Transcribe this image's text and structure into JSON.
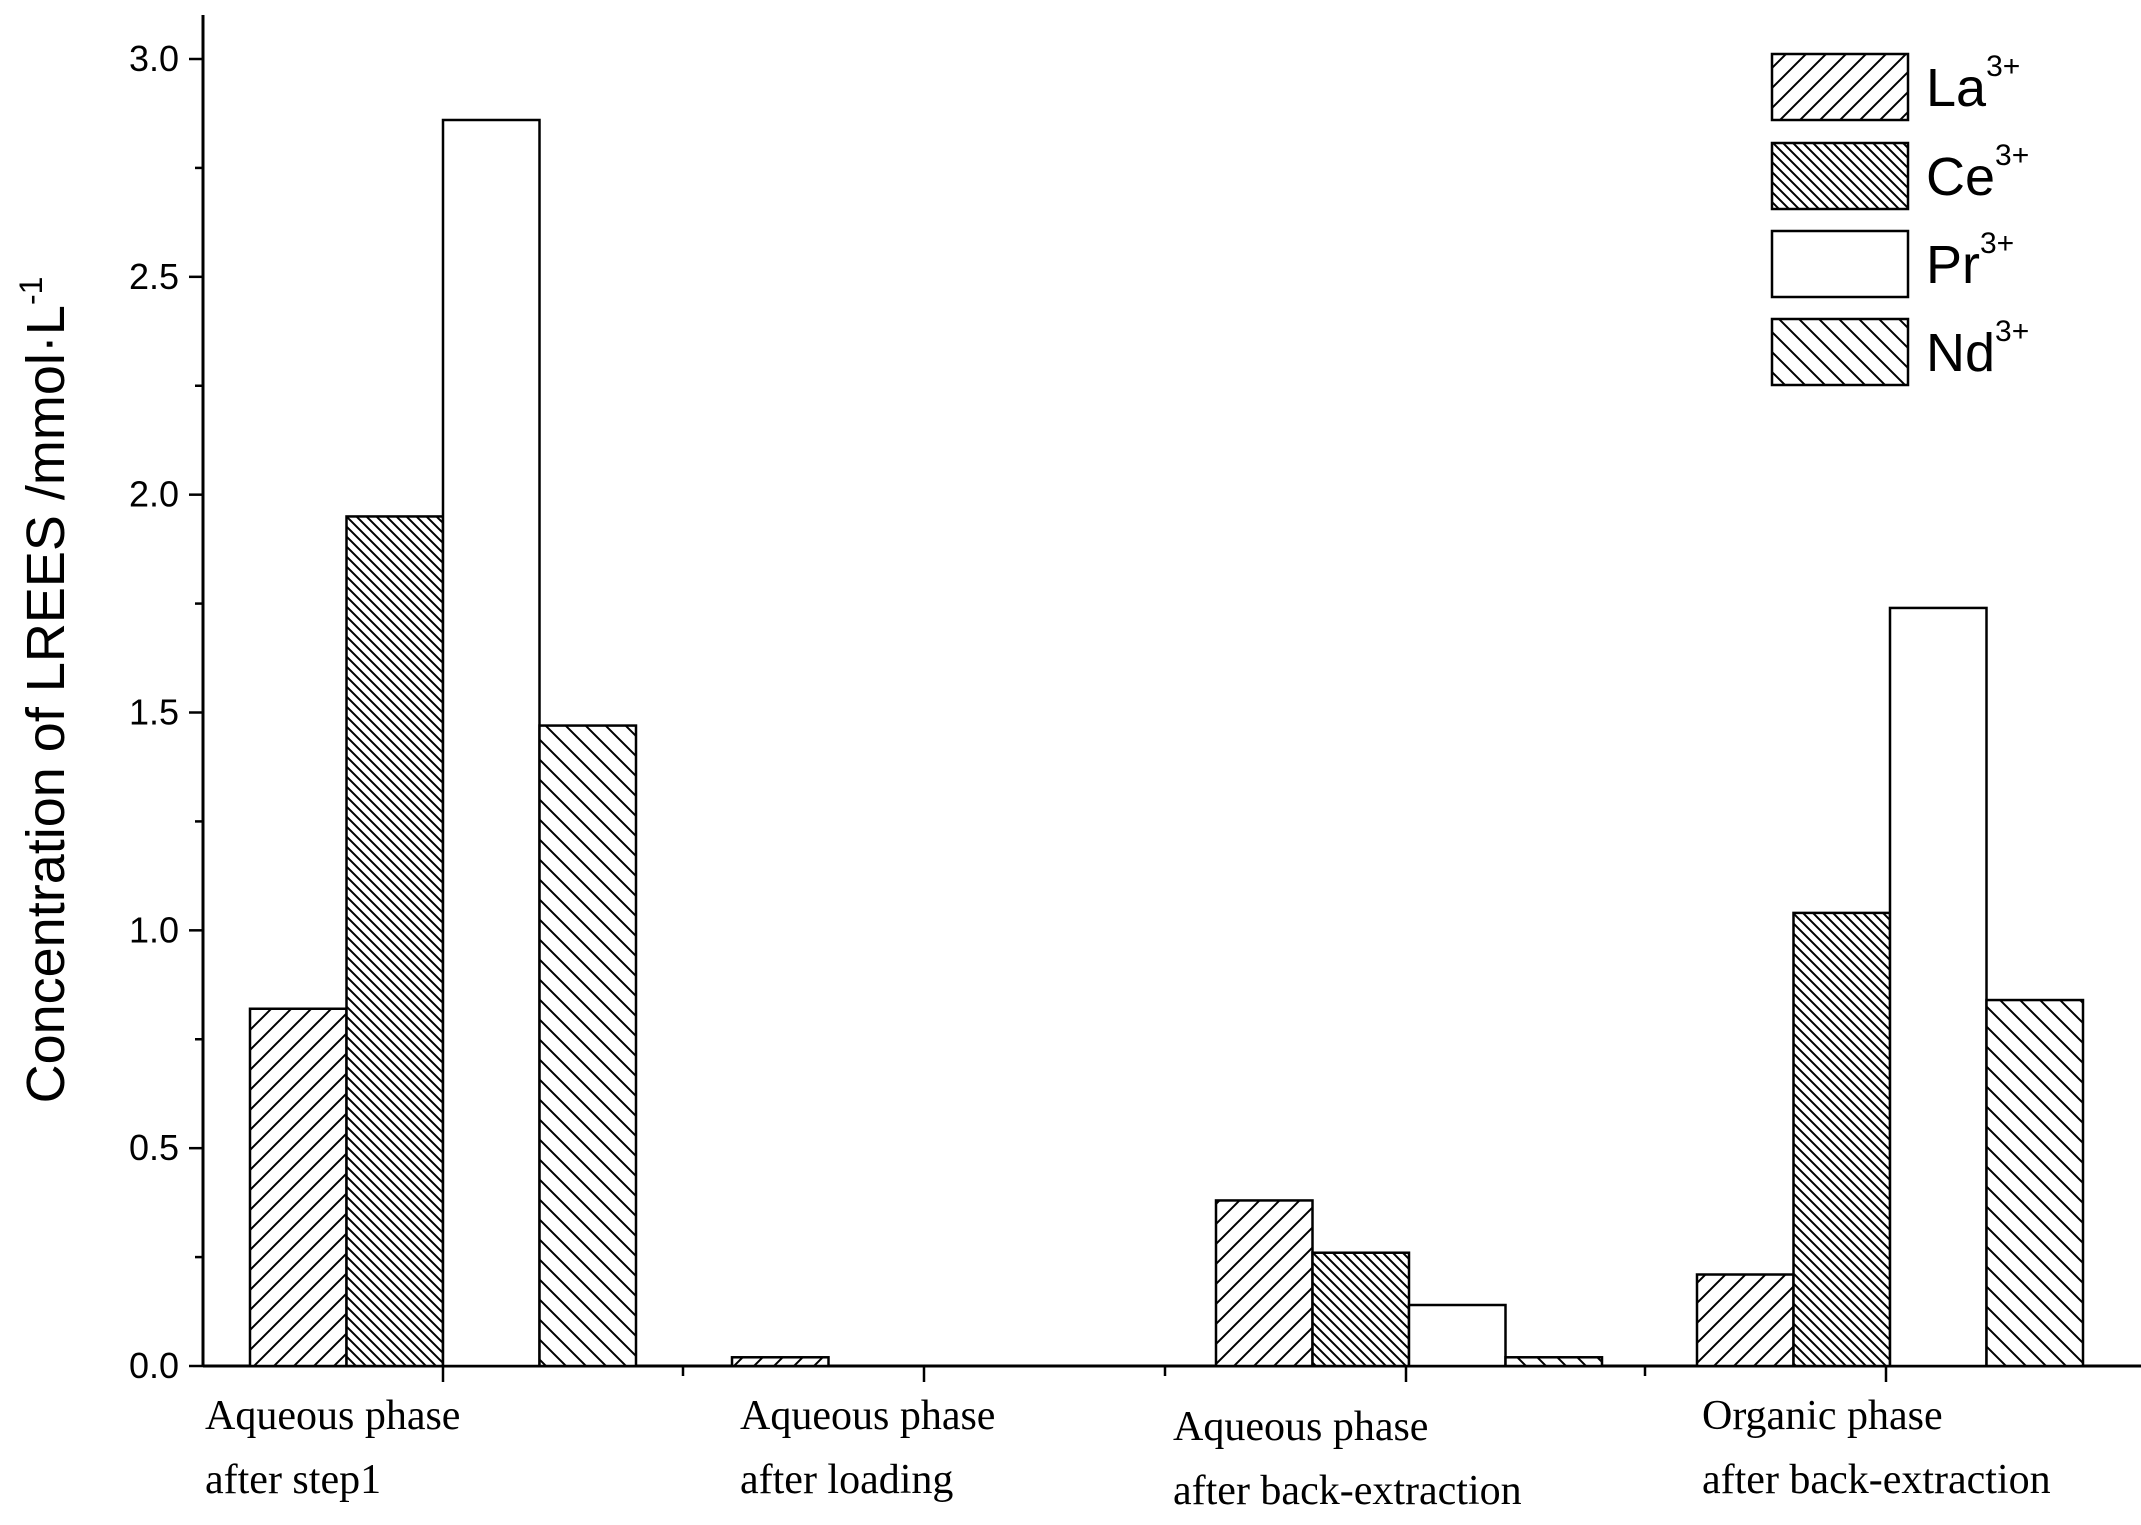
{
  "chart_data": {
    "type": "bar",
    "ylabel": "Concentration of LREES /mmol·L",
    "ylabel_sup": "-1",
    "ylim": [
      0,
      3.0
    ],
    "yticks": [
      "0.0",
      "0.5",
      "1.0",
      "1.5",
      "2.0",
      "2.5",
      "3.0"
    ],
    "categories": [
      [
        "Aqueous phase",
        "after step1"
      ],
      [
        "Aqueous phase",
        "after loading"
      ],
      [
        "Aqueous phase",
        "after back-extraction"
      ],
      [
        "Organic phase",
        "after back-extraction"
      ]
    ],
    "series": [
      {
        "name": "La",
        "sup": "3+",
        "pattern": "diag-fwd",
        "values": [
          0.82,
          0.02,
          0.38,
          0.21
        ]
      },
      {
        "name": "Ce",
        "sup": "3+",
        "pattern": "diag-back-dense",
        "values": [
          1.95,
          0.0,
          0.26,
          1.04
        ]
      },
      {
        "name": "Pr",
        "sup": "3+",
        "pattern": "none",
        "values": [
          2.86,
          0.0,
          0.14,
          1.74
        ]
      },
      {
        "name": "Nd",
        "sup": "3+",
        "pattern": "diag-back",
        "values": [
          1.47,
          0.0,
          0.02,
          0.84
        ]
      }
    ],
    "legend_position": "top-right",
    "grid": false
  }
}
